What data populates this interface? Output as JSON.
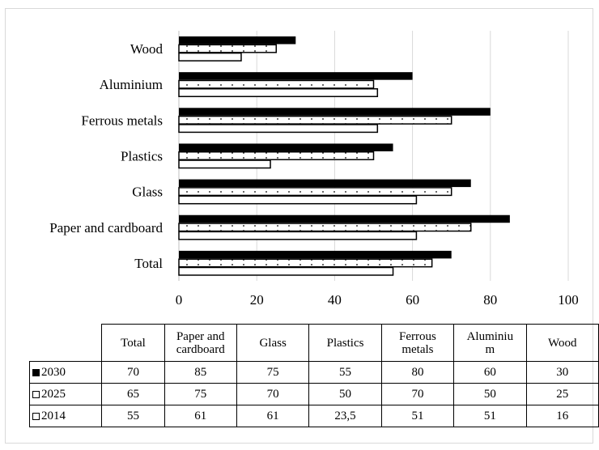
{
  "chart_data": {
    "type": "bar",
    "orientation": "horizontal",
    "categories": [
      "Total",
      "Paper and cardboard",
      "Glass",
      "Plastics",
      "Ferrous metals",
      "Aluminium",
      "Wood"
    ],
    "series": [
      {
        "name": "2030",
        "values": [
          70,
          85,
          75,
          55,
          80,
          60,
          30
        ],
        "fill": "#000000",
        "pattern": "solid"
      },
      {
        "name": "2025",
        "values": [
          65,
          75,
          70,
          50,
          70,
          50,
          25
        ],
        "fill": "#ffffff",
        "pattern": "dotted"
      },
      {
        "name": "2014",
        "values": [
          55,
          61,
          61,
          23.5,
          51,
          51,
          16
        ],
        "fill": "#ffffff",
        "pattern": "outline"
      }
    ],
    "xlim": [
      0,
      100
    ],
    "xticks": [
      0,
      20,
      40,
      60,
      80,
      100
    ],
    "grid": true,
    "legend": "data-table"
  },
  "table": {
    "headers": [
      "Total",
      "Paper and\ncardboard",
      "Glass",
      "Plastics",
      "Ferrous\nmetals",
      "Aluminiu\nm",
      "Wood"
    ],
    "rows": [
      {
        "label": "2030",
        "values": [
          "70",
          "85",
          "75",
          "55",
          "80",
          "60",
          "30"
        ]
      },
      {
        "label": "2025",
        "values": [
          "65",
          "75",
          "70",
          "50",
          "70",
          "50",
          "25"
        ]
      },
      {
        "label": "2014",
        "values": [
          "55",
          "61",
          "61",
          "23,5",
          "51",
          "51",
          "16"
        ]
      }
    ]
  }
}
